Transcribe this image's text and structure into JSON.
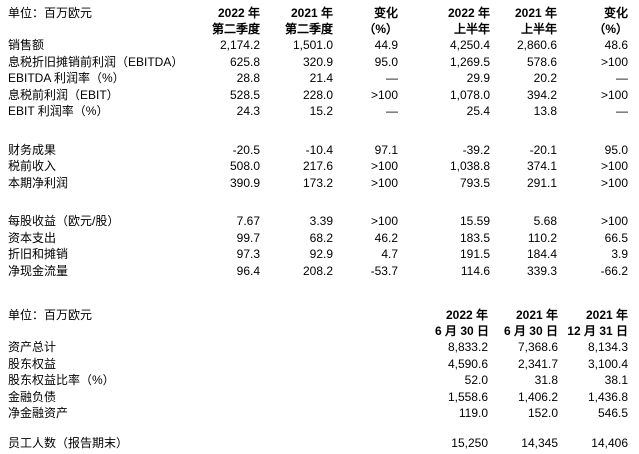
{
  "page": {
    "background": "#ffffff",
    "text_color": "#000000"
  },
  "quarterly_table": {
    "unit_label": "单位：百万欧元",
    "columns": [
      {
        "line1": "2022 年",
        "line2": "第二季度"
      },
      {
        "line1": "2021 年",
        "line2": "第二季度"
      },
      {
        "line1": "变化",
        "line2": "（%）"
      },
      {
        "line1": "2022 年",
        "line2": "上半年"
      },
      {
        "line1": "2021 年",
        "line2": "上半年"
      },
      {
        "line1": "变化",
        "line2": "（%）"
      }
    ],
    "rows": [
      {
        "label": "销售额",
        "values": [
          "2,174.2",
          "1,501.0",
          "44.9",
          "4,250.4",
          "2,860.6",
          "48.6"
        ]
      },
      {
        "label": "息税折旧摊销前利润（EBITDA）",
        "values": [
          "625.8",
          "320.9",
          "95.0",
          "1,269.5",
          "578.6",
          ">100"
        ]
      },
      {
        "label": "EBITDA 利润率（%）",
        "values": [
          "28.8",
          "21.4",
          "—",
          "29.9",
          "20.2",
          "—"
        ]
      },
      {
        "label": "息税前利润（EBIT）",
        "values": [
          "528.5",
          "228.0",
          ">100",
          "1,078.0",
          "394.2",
          ">100"
        ]
      },
      {
        "label": "EBIT 利润率（%）",
        "values": [
          "24.3",
          "15.2",
          "—",
          "25.4",
          "13.8",
          "—"
        ]
      },
      {
        "blank": true
      },
      {
        "label": "财务成果",
        "values": [
          "-20.5",
          "-10.4",
          "97.1",
          "-39.2",
          "-20.1",
          "95.0"
        ]
      },
      {
        "label": "税前收入",
        "values": [
          "508.0",
          "217.6",
          ">100",
          "1,038.8",
          "374.1",
          ">100"
        ]
      },
      {
        "label": "本期净利润",
        "values": [
          "390.9",
          "173.2",
          ">100",
          "793.5",
          "291.1",
          ">100"
        ]
      },
      {
        "blank": true
      },
      {
        "label": "每股收益（欧元/股）",
        "values": [
          "7.67",
          "3.39",
          ">100",
          "15.59",
          "5.68",
          ">100"
        ]
      },
      {
        "label": "资本支出",
        "values": [
          "99.7",
          "68.2",
          "46.2",
          "183.5",
          "110.2",
          "66.5"
        ]
      },
      {
        "label": "折旧和摊销",
        "values": [
          "97.3",
          "92.9",
          "4.7",
          "191.5",
          "184.4",
          "3.9"
        ]
      },
      {
        "label": "净现金流量",
        "values": [
          "96.4",
          "208.2",
          "-53.7",
          "114.6",
          "339.3",
          "-66.2"
        ]
      }
    ]
  },
  "balance_table": {
    "unit_label": "单位：百万欧元",
    "columns": [
      {
        "line1": "2022 年",
        "line2": "6 月 30 日"
      },
      {
        "line1": "2021 年",
        "line2": "6 月 30 日"
      },
      {
        "line1": "2021 年",
        "line2": "12 月 31 日"
      }
    ],
    "rows": [
      {
        "label": "资产总计",
        "values": [
          "8,833.2",
          "7,368.6",
          "8,134.3"
        ]
      },
      {
        "label": "股东权益",
        "values": [
          "4,590.6",
          "2,341.7",
          "3,100.4"
        ]
      },
      {
        "label": "股东权益比率（%）",
        "values": [
          "52.0",
          "31.8",
          "38.1"
        ]
      },
      {
        "label": "金融负债",
        "values": [
          "1,558.6",
          "1,406.2",
          "1,436.8"
        ]
      },
      {
        "label": "净金融资产",
        "values": [
          "119.0",
          "152.0",
          "546.5"
        ]
      },
      {
        "blank": true
      },
      {
        "label": "员工人数（报告期末）",
        "values": [
          "15,250",
          "14,345",
          "14,406"
        ]
      }
    ]
  }
}
